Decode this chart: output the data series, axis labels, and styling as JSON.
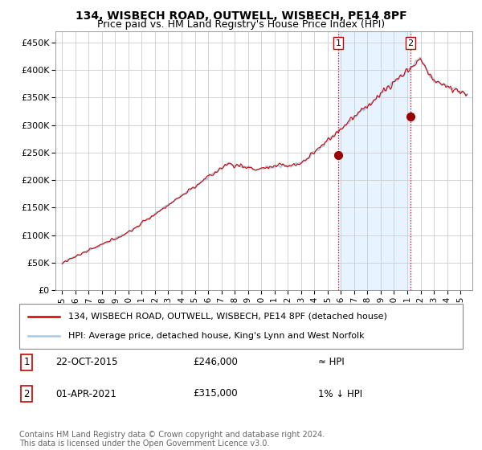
{
  "title": "134, WISBECH ROAD, OUTWELL, WISBECH, PE14 8PF",
  "subtitle": "Price paid vs. HM Land Registry's House Price Index (HPI)",
  "ylim": [
    0,
    470000
  ],
  "yticks": [
    0,
    50000,
    100000,
    150000,
    200000,
    250000,
    300000,
    350000,
    400000,
    450000
  ],
  "ytick_labels": [
    "£0",
    "£50K",
    "£100K",
    "£150K",
    "£200K",
    "£250K",
    "£300K",
    "£350K",
    "£400K",
    "£450K"
  ],
  "background_color": "#ffffff",
  "plot_bg_color": "#ffffff",
  "grid_color": "#cccccc",
  "hpi_color": "#a8c8e8",
  "price_color": "#cc0000",
  "shade_color": "#ddeeff",
  "legend_label_price": "134, WISBECH ROAD, OUTWELL, WISBECH, PE14 8PF (detached house)",
  "legend_label_hpi": "HPI: Average price, detached house, King's Lynn and West Norfolk",
  "sale1_date": "22-OCT-2015",
  "sale1_price": "£246,000",
  "sale1_rel": "≈ HPI",
  "sale2_date": "01-APR-2021",
  "sale2_price": "£315,000",
  "sale2_rel": "1% ↓ HPI",
  "footnote": "Contains HM Land Registry data © Crown copyright and database right 2024.\nThis data is licensed under the Open Government Licence v3.0.",
  "title_fontsize": 10,
  "subtitle_fontsize": 9,
  "tick_fontsize": 8,
  "legend_fontsize": 8,
  "table_fontsize": 8.5,
  "footnote_fontsize": 7
}
